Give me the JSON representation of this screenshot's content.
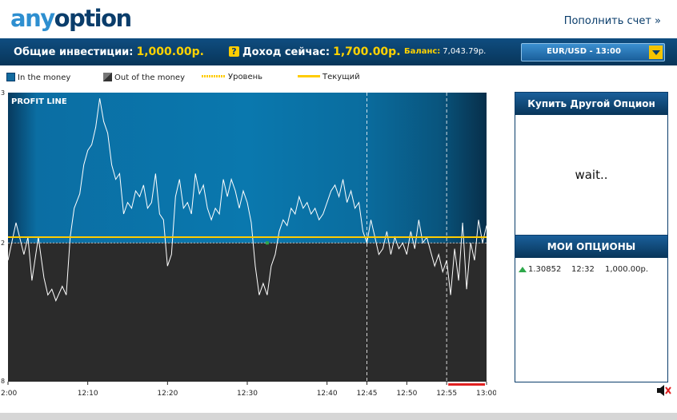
{
  "header": {
    "logo_bold": "any",
    "logo_rest": "option",
    "deposit_link": "Пополнить счет »"
  },
  "status": {
    "total_invest_label": "Общие инвестиции:",
    "total_invest_value": "1,000.00р.",
    "income_label": "Доход сейчас:",
    "income_value": "1,700.00р.",
    "balance_label": "Баланс:",
    "balance_value": "7,043.79р.",
    "asset": "EUR/USD - 13:00"
  },
  "legend": {
    "in_money": "In the money",
    "out_money": "Out of the money",
    "level": "Уровень",
    "current": "Текущий"
  },
  "panel": {
    "buy_title": "Купить Другой Опцион",
    "wait_text": "wait..",
    "my_options_title": "МОИ ОПЦИОНЫ",
    "options": [
      {
        "direction": "up",
        "level": "1.30852",
        "time": "12:32",
        "amount": "1,000.00р."
      }
    ]
  },
  "colors": {
    "in_money": "#0a73a8",
    "out_money": "#2b2b2b",
    "level_line": "#ffcc00",
    "price_line": "#ffffff",
    "red_marker": "#e02020"
  },
  "chart_data": {
    "type": "line",
    "title": "PROFIT LINE",
    "y_axis_labels": [
      "3",
      "2",
      "8"
    ],
    "x_ticks": [
      "2:00",
      "12:10",
      "12:20",
      "12:30",
      "12:40",
      "12:45",
      "12:50",
      "12:55",
      "13:00"
    ],
    "x_tick_minutes": [
      0,
      10,
      20,
      30,
      40,
      45,
      50,
      55,
      60
    ],
    "y_range": [
      0,
      100
    ],
    "level_value": 48,
    "current_value": 50,
    "series": [
      {
        "values": [
          [
            0,
            42
          ],
          [
            1,
            55
          ],
          [
            2,
            44
          ],
          [
            2.5,
            50
          ],
          [
            3,
            35
          ],
          [
            3.8,
            50
          ],
          [
            4.5,
            36
          ],
          [
            5,
            30
          ],
          [
            5.5,
            32
          ],
          [
            6,
            28
          ],
          [
            6.8,
            33
          ],
          [
            7.3,
            30
          ],
          [
            7.8,
            50
          ],
          [
            8.3,
            60
          ],
          [
            9,
            65
          ],
          [
            9.5,
            75
          ],
          [
            10,
            80
          ],
          [
            10.5,
            82
          ],
          [
            11,
            88
          ],
          [
            11.5,
            98
          ],
          [
            12,
            90
          ],
          [
            12.5,
            86
          ],
          [
            13,
            75
          ],
          [
            13.5,
            70
          ],
          [
            14,
            72
          ],
          [
            14.5,
            58
          ],
          [
            15,
            62
          ],
          [
            15.5,
            60
          ],
          [
            16,
            66
          ],
          [
            16.5,
            64
          ],
          [
            17,
            68
          ],
          [
            17.5,
            60
          ],
          [
            18,
            62
          ],
          [
            18.5,
            72
          ],
          [
            19,
            58
          ],
          [
            19.5,
            56
          ],
          [
            20,
            40
          ],
          [
            20.5,
            44
          ],
          [
            21,
            64
          ],
          [
            21.5,
            70
          ],
          [
            22,
            60
          ],
          [
            22.5,
            62
          ],
          [
            23,
            58
          ],
          [
            23.5,
            72
          ],
          [
            24,
            65
          ],
          [
            24.5,
            68
          ],
          [
            25,
            60
          ],
          [
            25.5,
            56
          ],
          [
            26,
            60
          ],
          [
            26.5,
            58
          ],
          [
            27,
            70
          ],
          [
            27.5,
            64
          ],
          [
            28,
            70
          ],
          [
            28.5,
            66
          ],
          [
            29,
            60
          ],
          [
            29.5,
            66
          ],
          [
            30,
            62
          ],
          [
            30.5,
            55
          ],
          [
            31,
            40
          ],
          [
            31.5,
            30
          ],
          [
            32,
            34
          ],
          [
            32.5,
            30
          ],
          [
            33,
            40
          ],
          [
            33.5,
            44
          ],
          [
            34,
            52
          ],
          [
            34.5,
            56
          ],
          [
            35,
            54
          ],
          [
            35.5,
            60
          ],
          [
            36,
            58
          ],
          [
            36.5,
            64
          ],
          [
            37,
            60
          ],
          [
            37.5,
            62
          ],
          [
            38,
            58
          ],
          [
            38.5,
            60
          ],
          [
            39,
            56
          ],
          [
            39.5,
            58
          ],
          [
            40,
            62
          ],
          [
            40.5,
            66
          ],
          [
            41,
            68
          ],
          [
            41.5,
            64
          ],
          [
            42,
            70
          ],
          [
            42.5,
            62
          ],
          [
            43,
            66
          ],
          [
            43.5,
            60
          ],
          [
            44,
            62
          ],
          [
            44.5,
            52
          ],
          [
            45,
            48
          ],
          [
            45.5,
            56
          ],
          [
            46,
            50
          ],
          [
            46.5,
            44
          ],
          [
            47,
            46
          ],
          [
            47.5,
            52
          ],
          [
            48,
            44
          ],
          [
            48.5,
            50
          ],
          [
            49,
            46
          ],
          [
            49.5,
            48
          ],
          [
            50,
            44
          ],
          [
            50.5,
            52
          ],
          [
            51,
            46
          ],
          [
            51.5,
            56
          ],
          [
            52,
            48
          ],
          [
            52.5,
            50
          ],
          [
            53,
            45
          ],
          [
            53.5,
            40
          ],
          [
            54,
            44
          ],
          [
            54.5,
            38
          ],
          [
            55,
            42
          ],
          [
            55.5,
            30
          ],
          [
            56,
            46
          ],
          [
            56.5,
            35
          ],
          [
            57,
            55
          ],
          [
            57.5,
            32
          ],
          [
            58,
            48
          ],
          [
            58.5,
            42
          ],
          [
            59,
            56
          ],
          [
            59.5,
            48
          ],
          [
            60,
            54
          ]
        ]
      }
    ]
  }
}
